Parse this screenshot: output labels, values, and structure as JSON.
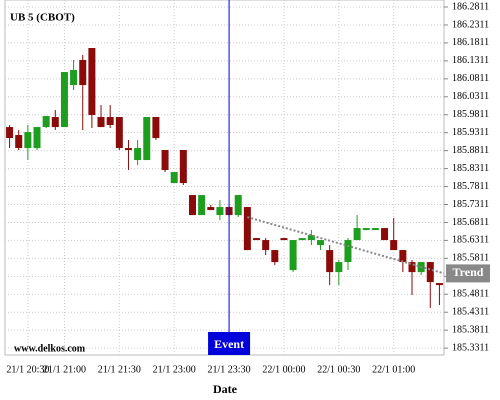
{
  "chart_data": {
    "type": "candlestick",
    "title": "UB 5 (CBOT)",
    "watermark": "www.delkos.com",
    "x_label": "Date",
    "categories": [
      null,
      null,
      "21/1 20:30",
      null,
      null,
      null,
      "21/1 21:00",
      null,
      null,
      null,
      null,
      null,
      "21/1 21:30",
      null,
      null,
      null,
      null,
      null,
      "21/1 23:00",
      null,
      null,
      null,
      null,
      null,
      "21/1 23:30",
      null,
      null,
      null,
      null,
      null,
      "22/1 00:00",
      null,
      null,
      null,
      null,
      null,
      "22/1 00:30",
      null,
      null,
      null,
      null,
      null,
      "22/1 01:00",
      null,
      null,
      null,
      null,
      null
    ],
    "open": [
      185.9468,
      185.9246,
      185.8883,
      185.8883,
      185.9468,
      185.9747,
      185.9468,
      186.0638,
      186.1335,
      186.1669,
      185.9747,
      185.9747,
      185.9747,
      185.8883,
      185.8549,
      185.8549,
      185.9747,
      185.8828,
      185.7909,
      185.8828,
      185.7574,
      185.7017,
      185.724,
      185.7017,
      185.724,
      185.7017,
      185.724,
      185.6376,
      185.6321,
      185.6042,
      185.6376,
      185.5485,
      185.6321,
      185.6321,
      185.6182,
      185.6042,
      185.5429,
      185.5708,
      185.6321,
      185.6599,
      185.6599,
      185.6655,
      185.6321,
      185.6042,
      185.5708,
      185.5429,
      185.5708,
      185.5123
    ],
    "high": [
      185.9524,
      185.9385,
      185.9524,
      185.9468,
      185.9775,
      185.9942,
      186.1,
      186.1335,
      186.1474,
      186.1669,
      186.0081,
      186.0081,
      185.9747,
      185.9106,
      185.9106,
      185.9747,
      185.9747,
      185.8828,
      185.8215,
      185.8828,
      185.7574,
      185.7574,
      185.7296,
      185.7435,
      185.7296,
      185.7574,
      185.724,
      185.6376,
      185.6376,
      185.6042,
      185.6376,
      185.6321,
      185.6376,
      185.6599,
      185.6321,
      185.6182,
      185.5764,
      185.6376,
      185.7017,
      185.6655,
      185.6655,
      185.6655,
      185.6934,
      185.6042,
      185.5764,
      185.5708,
      185.5708,
      185.5123
    ],
    "low": [
      185.8883,
      185.8828,
      185.8549,
      185.8828,
      185.9441,
      185.9385,
      185.9468,
      186.0499,
      185.9385,
      185.9441,
      185.9468,
      185.9441,
      185.8828,
      185.8271,
      185.841,
      185.8549,
      185.9106,
      185.8215,
      185.7909,
      185.7853,
      185.7017,
      185.7017,
      185.7156,
      185.6878,
      185.6961,
      185.6961,
      185.6042,
      185.6321,
      185.5903,
      185.5624,
      185.6321,
      185.5429,
      185.6321,
      185.6182,
      185.6042,
      185.5067,
      185.5067,
      185.5485,
      185.6321,
      185.6599,
      185.6599,
      185.6321,
      185.6042,
      185.5429,
      185.4789,
      185.5346,
      185.4427,
      185.451
    ],
    "close": [
      185.9162,
      185.8883,
      185.9329,
      185.9468,
      185.9775,
      185.9468,
      186.1,
      186.1056,
      186.0638,
      185.9803,
      185.9468,
      185.9524,
      185.8883,
      185.8828,
      185.8883,
      185.9747,
      185.9162,
      185.8271,
      185.8215,
      185.7909,
      185.7017,
      185.7574,
      185.7156,
      185.724,
      185.7017,
      185.7574,
      185.6042,
      185.6321,
      185.6042,
      185.5708,
      185.6321,
      185.6321,
      185.6376,
      185.646,
      185.6321,
      185.5429,
      185.5708,
      185.6321,
      185.6655,
      185.6655,
      185.6655,
      185.6321,
      185.6042,
      185.5708,
      185.5429,
      185.5708,
      185.5151,
      185.5067
    ],
    "up_color": "#1e9e1e",
    "down_color": "#8b0a0a",
    "trend": {
      "label": "Trend",
      "color": "#888888",
      "values": [
        null,
        null,
        null,
        null,
        null,
        null,
        null,
        null,
        null,
        null,
        null,
        null,
        null,
        null,
        null,
        null,
        null,
        null,
        null,
        null,
        null,
        null,
        null,
        null,
        null,
        null,
        185.6961,
        null,
        null,
        null,
        null,
        null,
        null,
        null,
        null,
        null,
        null,
        null,
        null,
        null,
        null,
        null,
        null,
        null,
        null,
        null,
        null,
        185.5429
      ]
    },
    "event": {
      "label": "Event",
      "x": 24,
      "color": "#0000dd"
    },
    "ylim": [
      185.312,
      186.3006
    ],
    "yticks": [
      185.3311,
      185.3811,
      185.4311,
      185.4811,
      185.5311,
      185.5811,
      185.6311,
      185.6811,
      185.7311,
      185.7811,
      185.8311,
      185.8811,
      185.9311,
      185.9811,
      186.0311,
      186.0811,
      186.1311,
      186.1811,
      186.2311,
      186.2811
    ],
    "grid": true
  }
}
